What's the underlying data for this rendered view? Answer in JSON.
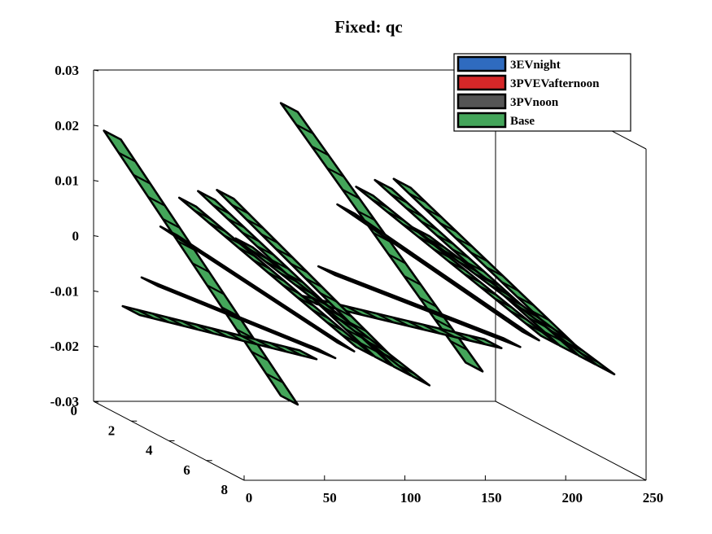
{
  "chart_data": {
    "type": "3d-waterfall",
    "title": "Fixed: qc",
    "xlabel": "",
    "ylabel": "",
    "zlabel": "",
    "xlim": [
      0,
      250
    ],
    "ylim": [
      0,
      8
    ],
    "zlim": [
      -0.03,
      0.03
    ],
    "x_ticks": [
      "0",
      "50",
      "100",
      "150",
      "200",
      "250"
    ],
    "y_ticks": [
      "0",
      "2",
      "4",
      "6",
      "8"
    ],
    "z_ticks": [
      "-0.03",
      "-0.02",
      "-0.01",
      "0",
      "0.01",
      "0.02",
      "0.03"
    ],
    "legend": {
      "placement": "top-right",
      "entries": [
        {
          "name": "3EVnight",
          "color": "#2f6bbf"
        },
        {
          "name": "3PVEVafternoon",
          "color": "#d62728"
        },
        {
          "name": "3PVnoon",
          "color": "#555555"
        },
        {
          "name": "Base",
          "color": "#44a55a"
        }
      ]
    },
    "visible_series_color": "#44a55a",
    "grid": false,
    "ribbons": [
      {
        "y": 8,
        "x_start": 0,
        "x_end": 110,
        "z_start": 0.013,
        "z_end": -0.012
      },
      {
        "y": 8,
        "x_start": 110,
        "x_end": 225,
        "z_start": 0.015,
        "z_end": -0.01
      },
      {
        "y": 7,
        "x_start": 0,
        "x_end": 110,
        "z_start": 0.02,
        "z_end": -0.012
      },
      {
        "y": 7,
        "x_start": 110,
        "x_end": 225,
        "z_start": 0.022,
        "z_end": -0.01
      },
      {
        "y": 6,
        "x_start": 0,
        "x_end": 110,
        "z_start": 0.018,
        "z_end": -0.012
      },
      {
        "y": 6,
        "x_start": 110,
        "x_end": 225,
        "z_start": 0.02,
        "z_end": -0.01
      },
      {
        "y": 5,
        "x_start": 0,
        "x_end": 110,
        "z_start": 0.015,
        "z_end": -0.012
      },
      {
        "y": 5,
        "x_start": 110,
        "x_end": 225,
        "z_start": 0.017,
        "z_end": -0.01
      },
      {
        "y": 4,
        "x_start": 0,
        "x_end": 110,
        "z_start": 0.008,
        "z_end": -0.013
      },
      {
        "y": 4,
        "x_start": 110,
        "x_end": 225,
        "z_start": 0.012,
        "z_end": -0.011
      },
      {
        "y": 3,
        "x_start": 0,
        "x_end": 110,
        "z_start": -0.003,
        "z_end": -0.016
      },
      {
        "y": 3,
        "x_start": 110,
        "x_end": 225,
        "z_start": -0.001,
        "z_end": -0.014
      },
      {
        "y": 2,
        "x_start": 0,
        "x_end": 110,
        "z_start": -0.01,
        "z_end": -0.018
      },
      {
        "y": 2,
        "x_start": 110,
        "x_end": 225,
        "z_start": -0.008,
        "z_end": -0.016
      },
      {
        "y": 1,
        "x_start": 0,
        "x_end": 110,
        "z_start": 0.02,
        "z_end": -0.028
      },
      {
        "y": 1,
        "x_start": 110,
        "x_end": 225,
        "z_start": 0.025,
        "z_end": -0.022
      }
    ]
  }
}
